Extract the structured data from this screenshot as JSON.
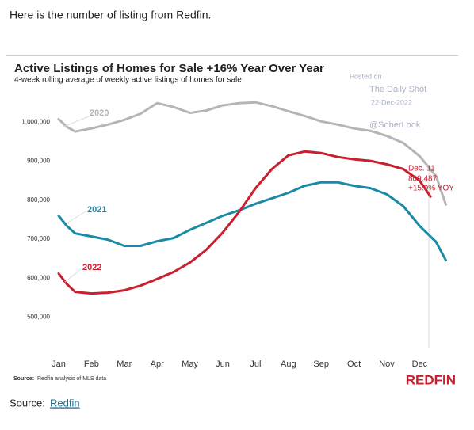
{
  "page": {
    "intro": "Here is the number of listing from Redfin.",
    "source_label": "Source:",
    "source_link": "Redfin"
  },
  "chart_data": {
    "type": "line",
    "title": "Active Listings of Homes for Sale +16% Year Over Year",
    "subtitle": "4-week rolling average of weekly active listings of homes for sale",
    "source_label": "Source:",
    "source_text": "Redfin analysis of MLS data",
    "logo": "REDFIN",
    "watermark": [
      "Posted on",
      "The Daily Shot",
      "22-Dec-2022",
      "@SoberLook"
    ],
    "annotation": [
      "Dec. 11",
      "809,487",
      "+15.9% YOY"
    ],
    "xlim": [
      -0.2,
      12.0
    ],
    "xticks": [
      {
        "value": 0,
        "label": "Jan"
      },
      {
        "value": 1,
        "label": "Feb"
      },
      {
        "value": 2,
        "label": "Mar"
      },
      {
        "value": 3,
        "label": "Apr"
      },
      {
        "value": 4,
        "label": "May"
      },
      {
        "value": 5,
        "label": "Jun"
      },
      {
        "value": 6,
        "label": "Jul"
      },
      {
        "value": 7,
        "label": "Aug"
      },
      {
        "value": 8,
        "label": "Sep"
      },
      {
        "value": 9,
        "label": "Oct"
      },
      {
        "value": 10,
        "label": "Nov"
      },
      {
        "value": 11,
        "label": "Dec"
      }
    ],
    "ylim": [
      420000,
      1090000
    ],
    "yticks": [
      {
        "value": 500000,
        "label": "500,000"
      },
      {
        "value": 600000,
        "label": "600,000"
      },
      {
        "value": 700000,
        "label": "700,000"
      },
      {
        "value": 800000,
        "label": "800,000"
      },
      {
        "value": 900000,
        "label": "900,000"
      },
      {
        "value": 1000000,
        "label": "1,000,000"
      }
    ],
    "grid": false,
    "series": [
      {
        "name": "2020",
        "color": "#b5b5b5",
        "x": [
          0,
          0.25,
          0.5,
          1,
          1.5,
          2,
          2.5,
          3,
          3.5,
          4,
          4.5,
          5,
          5.5,
          6,
          6.5,
          7,
          7.5,
          8,
          8.5,
          9,
          9.5,
          10,
          10.5,
          11,
          11.5,
          11.8
        ],
        "values": [
          1008000,
          988000,
          976000,
          984000,
          994000,
          1006000,
          1022000,
          1049000,
          1039000,
          1024000,
          1030000,
          1043000,
          1049000,
          1051000,
          1041000,
          1028000,
          1016000,
          1002000,
          994000,
          984000,
          978000,
          965000,
          947000,
          913000,
          862000,
          789000
        ]
      },
      {
        "name": "2021",
        "color": "#1a8aa6",
        "x": [
          0,
          0.25,
          0.5,
          1,
          1.5,
          2,
          2.5,
          3,
          3.5,
          4,
          4.5,
          5,
          5.5,
          6,
          6.5,
          7,
          7.5,
          8,
          8.5,
          9,
          9.5,
          10,
          10.5,
          11,
          11.5,
          11.8
        ],
        "values": [
          760000,
          734000,
          715000,
          707000,
          699000,
          683000,
          683000,
          695000,
          703000,
          724000,
          742000,
          760000,
          774000,
          791000,
          805000,
          819000,
          837000,
          846000,
          846000,
          837000,
          831000,
          815000,
          785000,
          734000,
          693000,
          646000
        ]
      },
      {
        "name": "2022",
        "color": "#c8202f",
        "x": [
          0,
          0.25,
          0.5,
          1,
          1.5,
          2,
          2.5,
          3,
          3.5,
          4,
          4.5,
          5,
          5.5,
          6,
          6.5,
          7,
          7.5,
          8,
          8.5,
          9,
          9.5,
          10,
          10.5,
          11,
          11.33
        ],
        "values": [
          612000,
          585000,
          565000,
          561000,
          563000,
          569000,
          581000,
          598000,
          616000,
          640000,
          673000,
          717000,
          770000,
          831000,
          880000,
          915000,
          925000,
          921000,
          911000,
          905000,
          901000,
          892000,
          880000,
          850000,
          809487
        ]
      }
    ]
  }
}
